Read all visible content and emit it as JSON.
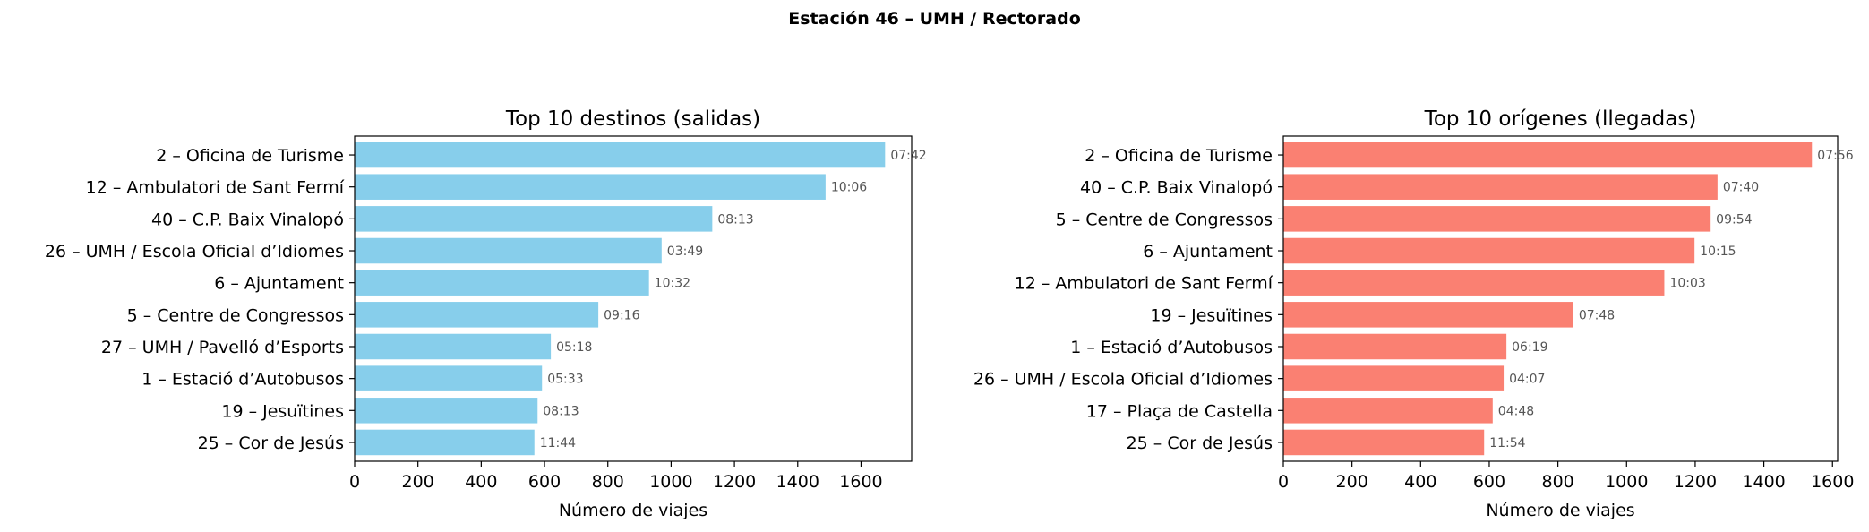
{
  "suptitle": "Estación 46 – UMH / Rectorado",
  "chart_data": [
    {
      "type": "bar",
      "orientation": "horizontal",
      "title": "Top 10 destinos (salidas)",
      "xlabel": "Número de viajes",
      "ylabel": "",
      "xlim": [
        0,
        1760
      ],
      "xticks": [
        0,
        200,
        400,
        600,
        800,
        1000,
        1200,
        1400,
        1600
      ],
      "color": "#87CEEB",
      "categories": [
        "2 – Oficina de Turisme",
        "12 – Ambulatori de Sant Fermí",
        "40 – C.P. Baix Vinalopó",
        "26 – UMH / Escola Oficial d’Idiomes",
        "6 – Ajuntament",
        "5 – Centre de Congressos",
        "27 – UMH / Pavelló d’Esports",
        "1 – Estació d’Autobusos",
        "19 – Jesuïtines",
        "25 – Cor de Jesús"
      ],
      "values": [
        1676,
        1488,
        1130,
        970,
        930,
        770,
        620,
        592,
        578,
        568
      ],
      "data_labels": [
        "07:42",
        "10:06",
        "08:13",
        "03:49",
        "10:32",
        "09:16",
        "05:18",
        "05:33",
        "08:13",
        "11:44"
      ],
      "grid": false
    },
    {
      "type": "bar",
      "orientation": "horizontal",
      "title": "Top 10 orígenes (llegadas)",
      "xlabel": "Número de viajes",
      "ylabel": "",
      "xlim": [
        0,
        1615
      ],
      "xticks": [
        0,
        200,
        400,
        600,
        800,
        1000,
        1200,
        1400,
        1600
      ],
      "color": "#FA8072",
      "categories": [
        "2 – Oficina de Turisme",
        "40 – C.P. Baix Vinalopó",
        "5 – Centre de Congressos",
        "6 – Ajuntament",
        "12 – Ambulatori de Sant Fermí",
        "19 – Jesuïtines",
        "1 – Estació d’Autobusos",
        "26 – UMH / Escola Oficial d’Idiomes",
        "17 – Plaça de Castella",
        "25 – Cor de Jesús"
      ],
      "values": [
        1540,
        1265,
        1245,
        1198,
        1110,
        845,
        650,
        642,
        610,
        585
      ],
      "data_labels": [
        "07:56",
        "07:40",
        "09:54",
        "10:15",
        "10:03",
        "07:48",
        "06:19",
        "04:07",
        "04:48",
        "11:54"
      ],
      "grid": false
    }
  ]
}
